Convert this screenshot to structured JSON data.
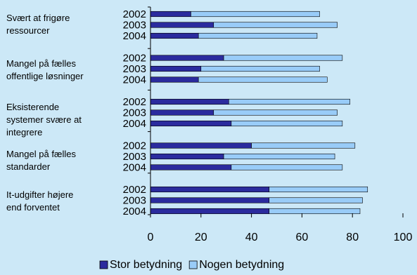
{
  "chart_data": {
    "type": "bar",
    "orientation": "horizontal",
    "stacked": true,
    "xlim": [
      0,
      100
    ],
    "x_ticks": [
      "0",
      "20",
      "40",
      "60",
      "80",
      "100"
    ],
    "grid": false,
    "legend_position": "bottom-center",
    "groups": [
      {
        "label_lines": [
          "Svært at frigøre",
          "ressourcer"
        ],
        "years": [
          "2002",
          "2003",
          "2004"
        ]
      },
      {
        "label_lines": [
          "Mangel på fælles",
          "offentlige løsninger"
        ],
        "years": [
          "2002",
          "2003",
          "2004"
        ]
      },
      {
        "label_lines": [
          "Eksisterende",
          "systemer svære at",
          "integrere"
        ],
        "years": [
          "2002",
          "2003",
          "2004"
        ]
      },
      {
        "label_lines": [
          "Mangel på fælles",
          "standarder"
        ],
        "years": [
          "2002",
          "2003",
          "2004"
        ]
      },
      {
        "label_lines": [
          "It-udgifter højere",
          "end forventet"
        ],
        "years": [
          "2002",
          "2003",
          "2004"
        ]
      }
    ],
    "series": [
      {
        "name": "Stor betydning",
        "color": "#2b2b9e",
        "values": [
          [
            16,
            25,
            19
          ],
          [
            29,
            20,
            19
          ],
          [
            31,
            25,
            32
          ],
          [
            40,
            29,
            32
          ],
          [
            47,
            47,
            47
          ]
        ]
      },
      {
        "name": "Nogen betydning",
        "color": "#99ccf8",
        "values": [
          [
            51,
            49,
            47
          ],
          [
            47,
            47,
            51
          ],
          [
            48,
            49,
            44
          ],
          [
            41,
            44,
            44
          ],
          [
            39,
            37,
            36
          ]
        ]
      }
    ]
  }
}
